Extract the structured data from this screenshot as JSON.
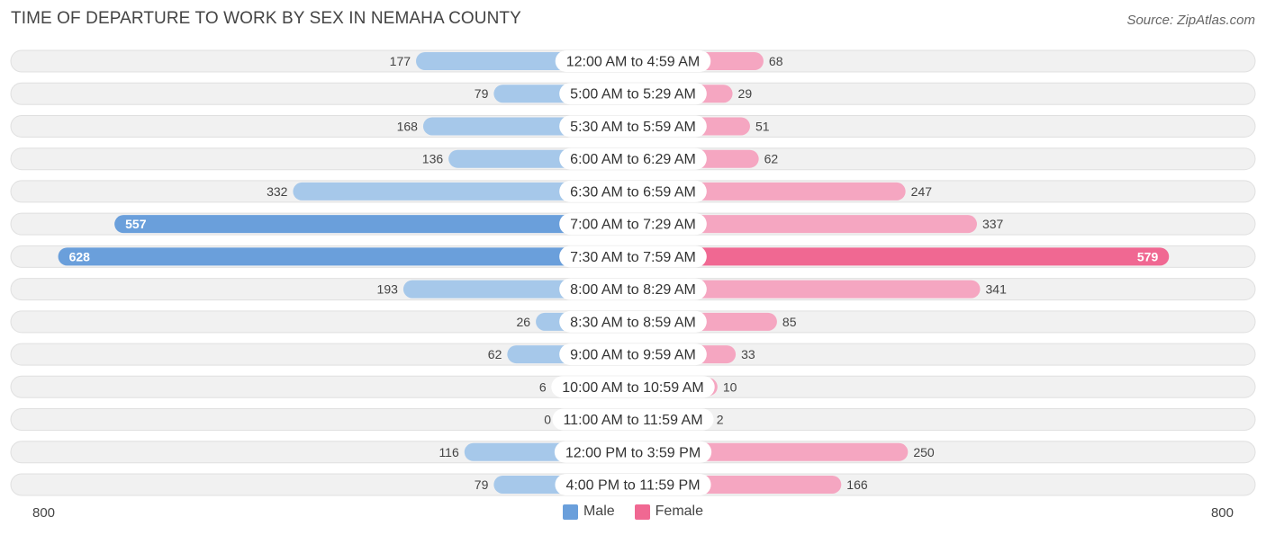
{
  "title": "TIME OF DEPARTURE TO WORK BY SEX IN NEMAHA COUNTY",
  "source": "Source: ZipAtlas.com",
  "colors": {
    "male_light": "#a6c8ea",
    "male_strong": "#6a9fdb",
    "female_light": "#f5a6c1",
    "female_strong": "#f06892",
    "row_bg": "#f1f1f1",
    "row_border": "#e0e0e0"
  },
  "legend": {
    "male": "Male",
    "female": "Female"
  },
  "axis": {
    "left": "800",
    "right": "800"
  },
  "chart_data": {
    "type": "bar",
    "orientation": "horizontal-diverging",
    "title": "TIME OF DEPARTURE TO WORK BY SEX IN NEMAHA COUNTY",
    "xlim": [
      -800,
      800
    ],
    "categories": [
      "12:00 AM to 4:59 AM",
      "5:00 AM to 5:29 AM",
      "5:30 AM to 5:59 AM",
      "6:00 AM to 6:29 AM",
      "6:30 AM to 6:59 AM",
      "7:00 AM to 7:29 AM",
      "7:30 AM to 7:59 AM",
      "8:00 AM to 8:29 AM",
      "8:30 AM to 8:59 AM",
      "9:00 AM to 9:59 AM",
      "10:00 AM to 10:59 AM",
      "11:00 AM to 11:59 AM",
      "12:00 PM to 3:59 PM",
      "4:00 PM to 11:59 PM"
    ],
    "series": [
      {
        "name": "Male",
        "values": [
          177,
          79,
          168,
          136,
          332,
          557,
          628,
          193,
          26,
          62,
          6,
          0,
          116,
          79
        ]
      },
      {
        "name": "Female",
        "values": [
          68,
          29,
          51,
          62,
          247,
          337,
          579,
          341,
          85,
          33,
          10,
          2,
          250,
          166
        ]
      }
    ]
  }
}
